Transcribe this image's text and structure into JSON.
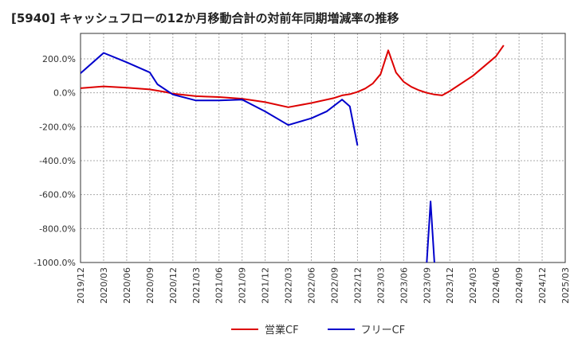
{
  "chart_data": {
    "type": "line",
    "title": "[5940]  キャッシュフローの12か月移動合計の対前年同期増減率の推移",
    "xlabel": "",
    "ylabel": "",
    "ylim": [
      -1000,
      350
    ],
    "yticks": [
      200,
      0,
      -200,
      -400,
      -600,
      -800,
      -1000
    ],
    "ytick_labels": [
      "200.0%",
      "0.0%",
      "-200.0%",
      "-400.0%",
      "-600.0%",
      "-800.0%",
      "-1000.0%"
    ],
    "x_ticks": [
      "2019/12",
      "2020/03",
      "2020/06",
      "2020/09",
      "2020/12",
      "2021/03",
      "2021/06",
      "2021/09",
      "2021/12",
      "2022/03",
      "2022/06",
      "2022/09",
      "2022/12",
      "2023/03",
      "2023/06",
      "2023/09",
      "2023/12",
      "2024/03",
      "2024/06",
      "2024/09",
      "2024/12",
      "2025/03"
    ],
    "grid": true,
    "series": [
      {
        "name": "営業CF",
        "color": "#dd0000",
        "points": [
          [
            0,
            27
          ],
          [
            3,
            38
          ],
          [
            6,
            30
          ],
          [
            9,
            20
          ],
          [
            11,
            5
          ],
          [
            12,
            -5
          ],
          [
            15,
            -20
          ],
          [
            18,
            -25
          ],
          [
            21,
            -35
          ],
          [
            24,
            -55
          ],
          [
            27,
            -85
          ],
          [
            30,
            -60
          ],
          [
            33,
            -30
          ],
          [
            34,
            -15
          ],
          [
            35,
            -8
          ],
          [
            36,
            5
          ],
          [
            37,
            25
          ],
          [
            38,
            55
          ],
          [
            39,
            110
          ],
          [
            40,
            250
          ],
          [
            41,
            120
          ],
          [
            42,
            65
          ],
          [
            43,
            35
          ],
          [
            44,
            15
          ],
          [
            45,
            0
          ],
          [
            46,
            -10
          ],
          [
            47,
            -15
          ],
          [
            48,
            10
          ],
          [
            51,
            100
          ],
          [
            54,
            215
          ],
          [
            55,
            280
          ]
        ]
      },
      {
        "name": "フリーCF",
        "color": "#0000cc",
        "segments": [
          [
            [
              0,
              115
            ],
            [
              3,
              235
            ],
            [
              6,
              180
            ],
            [
              9,
              120
            ],
            [
              10,
              50
            ],
            [
              12,
              -10
            ],
            [
              15,
              -45
            ],
            [
              18,
              -45
            ],
            [
              21,
              -40
            ],
            [
              24,
              -110
            ],
            [
              27,
              -190
            ],
            [
              30,
              -150
            ],
            [
              32,
              -110
            ],
            [
              34,
              -40
            ],
            [
              35,
              -80
            ],
            [
              36,
              -310
            ]
          ],
          [
            [
              45,
              -1000
            ],
            [
              45.5,
              -640
            ],
            [
              46,
              -1000
            ]
          ]
        ]
      }
    ],
    "legend": [
      "営業CF",
      "フリーCF"
    ],
    "legend_position": "bottom"
  }
}
